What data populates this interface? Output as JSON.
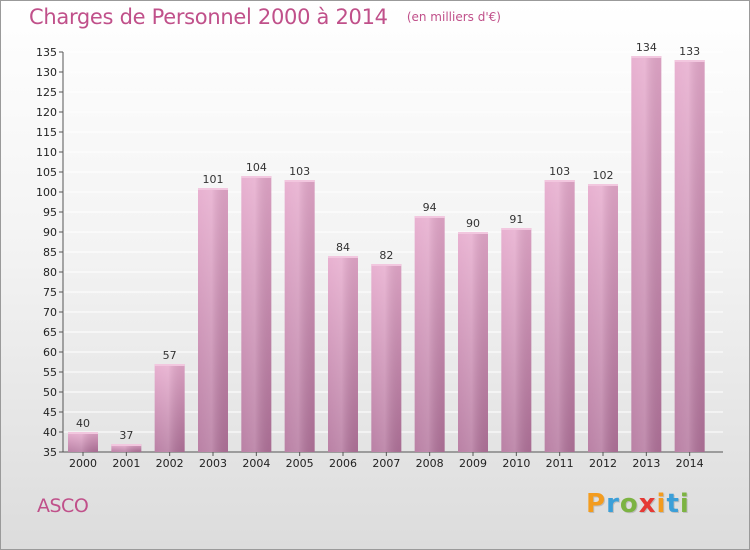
{
  "chart_data": {
    "type": "bar",
    "title": "Charges de Personnel 2000 à 2014",
    "subtitle": "(en milliers d'€)",
    "categories": [
      "2000",
      "2001",
      "2002",
      "2003",
      "2004",
      "2005",
      "2006",
      "2007",
      "2008",
      "2009",
      "2010",
      "2011",
      "2012",
      "2013",
      "2014"
    ],
    "values": [
      40,
      37,
      57,
      101,
      104,
      103,
      84,
      82,
      94,
      90,
      91,
      103,
      102,
      134,
      133
    ],
    "ylim": [
      35,
      135
    ],
    "yticks": [
      35,
      40,
      45,
      50,
      55,
      60,
      65,
      70,
      75,
      80,
      85,
      90,
      95,
      100,
      105,
      110,
      115,
      120,
      125,
      130,
      135
    ],
    "grid": true,
    "colors": {
      "bar_top": "#e6a9cc",
      "bar_bottom": "#b2739b",
      "title": "#c0508a"
    }
  },
  "footer": {
    "commune": "ASCO",
    "logo_letters": [
      "P",
      "r",
      "o",
      "x",
      "i",
      "t",
      "i"
    ],
    "logo_colors": [
      "#f39c1f",
      "#3b9fd8",
      "#7cb342",
      "#e53935",
      "#f39c1f",
      "#3b9fd8",
      "#7cb342"
    ]
  }
}
